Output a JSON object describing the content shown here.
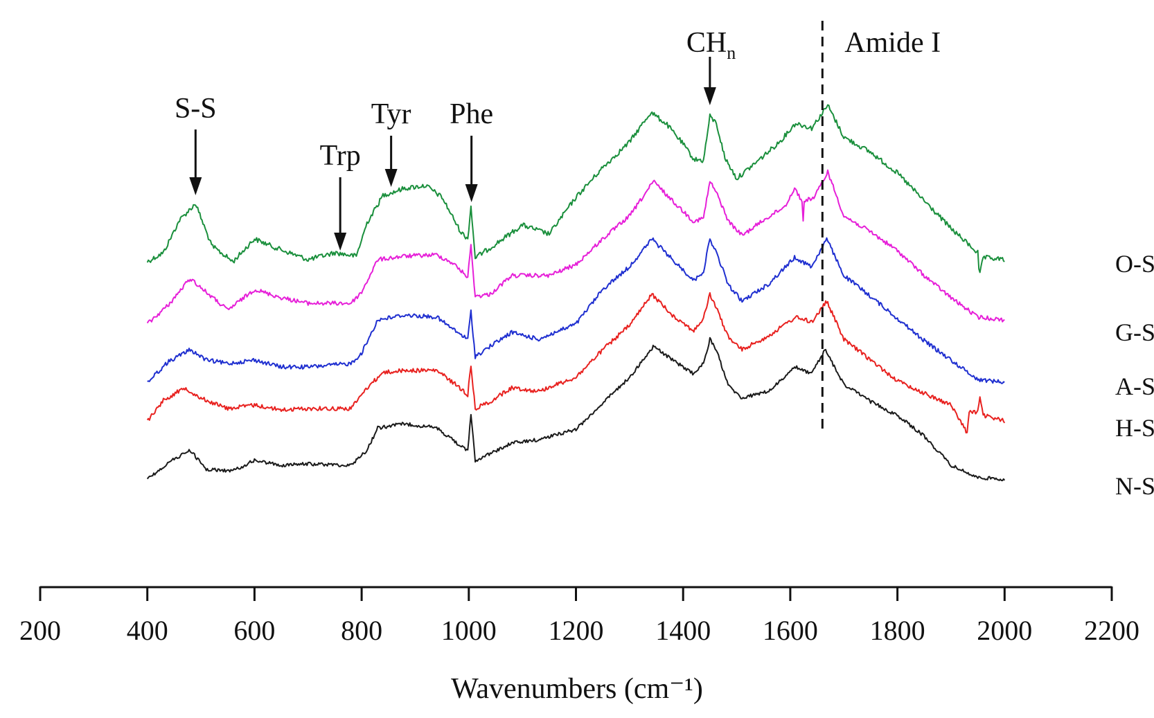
{
  "chart_data": {
    "type": "line",
    "title": "",
    "xlabel": "Wavenumbers (cm⁻¹)",
    "ylabel": "",
    "xlim": [
      200,
      2200
    ],
    "x_ticks": [
      200,
      400,
      600,
      800,
      1000,
      1200,
      1400,
      1600,
      1800,
      2000,
      2200
    ],
    "x_tick_labels": [
      "200",
      "400",
      "600",
      "800",
      "1000",
      "1200",
      "1400",
      "1600",
      "1800",
      "2000",
      "2200"
    ],
    "y_axis_visible": false,
    "grid": false,
    "series": [
      {
        "name": "O-SPI",
        "color": "#1a8f3c",
        "noise": 7,
        "points": [
          [
            400,
            378
          ],
          [
            430,
            365
          ],
          [
            460,
            318
          ],
          [
            490,
            294
          ],
          [
            520,
            355
          ],
          [
            560,
            378
          ],
          [
            600,
            345
          ],
          [
            640,
            358
          ],
          [
            700,
            375
          ],
          [
            750,
            365
          ],
          [
            790,
            370
          ],
          [
            810,
            322
          ],
          [
            840,
            282
          ],
          [
            880,
            272
          ],
          [
            920,
            268
          ],
          [
            950,
            285
          ],
          [
            985,
            335
          ],
          [
            998,
            345
          ],
          [
            1004,
            298
          ],
          [
            1012,
            372
          ],
          [
            1040,
            358
          ],
          [
            1100,
            325
          ],
          [
            1150,
            338
          ],
          [
            1200,
            285
          ],
          [
            1250,
            242
          ],
          [
            1300,
            205
          ],
          [
            1340,
            162
          ],
          [
            1370,
            180
          ],
          [
            1400,
            208
          ],
          [
            1420,
            230
          ],
          [
            1438,
            232
          ],
          [
            1450,
            168
          ],
          [
            1462,
            178
          ],
          [
            1478,
            228
          ],
          [
            1500,
            258
          ],
          [
            1540,
            232
          ],
          [
            1580,
            205
          ],
          [
            1610,
            178
          ],
          [
            1640,
            185
          ],
          [
            1670,
            152
          ],
          [
            1700,
            198
          ],
          [
            1750,
            220
          ],
          [
            1800,
            250
          ],
          [
            1850,
            290
          ],
          [
            1900,
            330
          ],
          [
            1950,
            365
          ],
          [
            1953,
            400
          ],
          [
            1960,
            372
          ],
          [
            2000,
            375
          ]
        ]
      },
      {
        "name": "G-SPI",
        "color": "#e61fd8",
        "noise": 6,
        "points": [
          [
            400,
            468
          ],
          [
            440,
            440
          ],
          [
            480,
            402
          ],
          [
            510,
            422
          ],
          [
            550,
            448
          ],
          [
            600,
            418
          ],
          [
            650,
            430
          ],
          [
            700,
            438
          ],
          [
            780,
            438
          ],
          [
            800,
            422
          ],
          [
            830,
            375
          ],
          [
            880,
            370
          ],
          [
            940,
            368
          ],
          [
            970,
            380
          ],
          [
            998,
            400
          ],
          [
            1004,
            355
          ],
          [
            1012,
            428
          ],
          [
            1040,
            425
          ],
          [
            1080,
            398
          ],
          [
            1150,
            398
          ],
          [
            1200,
            382
          ],
          [
            1250,
            345
          ],
          [
            1300,
            312
          ],
          [
            1345,
            262
          ],
          [
            1380,
            290
          ],
          [
            1420,
            320
          ],
          [
            1438,
            315
          ],
          [
            1450,
            262
          ],
          [
            1462,
            278
          ],
          [
            1485,
            320
          ],
          [
            1510,
            340
          ],
          [
            1550,
            318
          ],
          [
            1590,
            298
          ],
          [
            1608,
            272
          ],
          [
            1622,
            290
          ],
          [
            1624,
            322
          ],
          [
            1626,
            290
          ],
          [
            1645,
            285
          ],
          [
            1670,
            248
          ],
          [
            1700,
            312
          ],
          [
            1750,
            335
          ],
          [
            1800,
            362
          ],
          [
            1850,
            398
          ],
          [
            1900,
            430
          ],
          [
            1950,
            458
          ],
          [
            2000,
            462
          ]
        ]
      },
      {
        "name": "A-SPI",
        "color": "#1f2fd0",
        "noise": 6,
        "points": [
          [
            400,
            552
          ],
          [
            440,
            522
          ],
          [
            480,
            505
          ],
          [
            510,
            520
          ],
          [
            550,
            525
          ],
          [
            600,
            520
          ],
          [
            650,
            530
          ],
          [
            700,
            530
          ],
          [
            780,
            525
          ],
          [
            800,
            510
          ],
          [
            830,
            462
          ],
          [
            880,
            455
          ],
          [
            940,
            458
          ],
          [
            975,
            478
          ],
          [
            998,
            490
          ],
          [
            1004,
            450
          ],
          [
            1012,
            515
          ],
          [
            1040,
            500
          ],
          [
            1080,
            480
          ],
          [
            1130,
            490
          ],
          [
            1200,
            468
          ],
          [
            1250,
            418
          ],
          [
            1300,
            385
          ],
          [
            1342,
            345
          ],
          [
            1380,
            375
          ],
          [
            1420,
            405
          ],
          [
            1438,
            392
          ],
          [
            1450,
            345
          ],
          [
            1462,
            365
          ],
          [
            1485,
            412
          ],
          [
            1510,
            435
          ],
          [
            1560,
            410
          ],
          [
            1608,
            372
          ],
          [
            1640,
            385
          ],
          [
            1668,
            345
          ],
          [
            1700,
            398
          ],
          [
            1750,
            428
          ],
          [
            1800,
            460
          ],
          [
            1850,
            492
          ],
          [
            1900,
            520
          ],
          [
            1950,
            548
          ],
          [
            2000,
            552
          ]
        ]
      },
      {
        "name": "H-SPI",
        "color": "#e8211f",
        "noise": 6,
        "points": [
          [
            400,
            608
          ],
          [
            430,
            578
          ],
          [
            470,
            560
          ],
          [
            500,
            575
          ],
          [
            550,
            590
          ],
          [
            600,
            585
          ],
          [
            650,
            592
          ],
          [
            700,
            590
          ],
          [
            780,
            590
          ],
          [
            810,
            560
          ],
          [
            840,
            538
          ],
          [
            880,
            535
          ],
          [
            940,
            535
          ],
          [
            975,
            555
          ],
          [
            998,
            570
          ],
          [
            1004,
            528
          ],
          [
            1012,
            590
          ],
          [
            1040,
            580
          ],
          [
            1080,
            560
          ],
          [
            1130,
            565
          ],
          [
            1200,
            545
          ],
          [
            1250,
            505
          ],
          [
            1300,
            470
          ],
          [
            1342,
            425
          ],
          [
            1380,
            455
          ],
          [
            1420,
            478
          ],
          [
            1438,
            460
          ],
          [
            1450,
            425
          ],
          [
            1462,
            445
          ],
          [
            1485,
            488
          ],
          [
            1510,
            505
          ],
          [
            1560,
            485
          ],
          [
            1610,
            458
          ],
          [
            1640,
            465
          ],
          [
            1668,
            435
          ],
          [
            1700,
            490
          ],
          [
            1750,
            520
          ],
          [
            1800,
            550
          ],
          [
            1850,
            568
          ],
          [
            1900,
            585
          ],
          [
            1930,
            625
          ],
          [
            1934,
            595
          ],
          [
            1950,
            595
          ],
          [
            1954,
            575
          ],
          [
            1960,
            600
          ],
          [
            2000,
            608
          ]
        ]
      },
      {
        "name": "N-SPI",
        "color": "#1a1a1a",
        "noise": 5,
        "points": [
          [
            400,
            692
          ],
          [
            440,
            668
          ],
          [
            480,
            650
          ],
          [
            510,
            678
          ],
          [
            560,
            680
          ],
          [
            600,
            665
          ],
          [
            650,
            672
          ],
          [
            700,
            670
          ],
          [
            780,
            672
          ],
          [
            810,
            650
          ],
          [
            830,
            618
          ],
          [
            880,
            612
          ],
          [
            940,
            618
          ],
          [
            975,
            638
          ],
          [
            998,
            652
          ],
          [
            1004,
            598
          ],
          [
            1012,
            665
          ],
          [
            1040,
            655
          ],
          [
            1080,
            640
          ],
          [
            1130,
            635
          ],
          [
            1200,
            620
          ],
          [
            1250,
            582
          ],
          [
            1300,
            545
          ],
          [
            1345,
            500
          ],
          [
            1380,
            520
          ],
          [
            1420,
            540
          ],
          [
            1438,
            525
          ],
          [
            1450,
            490
          ],
          [
            1462,
            505
          ],
          [
            1485,
            558
          ],
          [
            1510,
            575
          ],
          [
            1560,
            565
          ],
          [
            1610,
            530
          ],
          [
            1640,
            540
          ],
          [
            1665,
            505
          ],
          [
            1700,
            555
          ],
          [
            1750,
            580
          ],
          [
            1800,
            600
          ],
          [
            1850,
            630
          ],
          [
            1900,
            672
          ],
          [
            1950,
            690
          ],
          [
            2000,
            692
          ]
        ]
      }
    ],
    "annotations": [
      {
        "label": "S-S",
        "x": 490,
        "arrow": true
      },
      {
        "label": "Trp",
        "x": 760,
        "arrow": true
      },
      {
        "label": "Tyr",
        "x": 855,
        "arrow": true
      },
      {
        "label": "Phe",
        "x": 1005,
        "arrow": true
      },
      {
        "label": "CH",
        "subscript": "n",
        "x": 1450,
        "arrow": true
      },
      {
        "label": "Amide I",
        "x": 1660,
        "dashed_line": true
      }
    ]
  }
}
